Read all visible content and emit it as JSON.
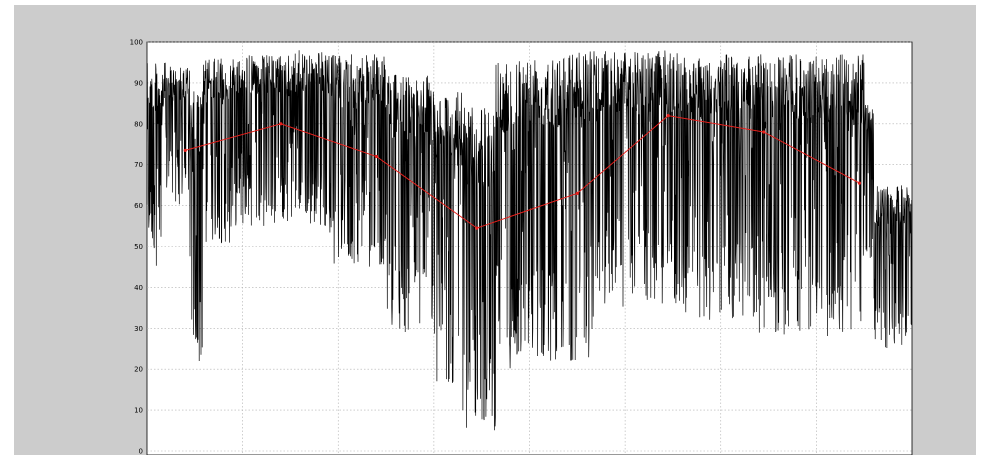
{
  "window": {
    "background": "#cccccc"
  },
  "chart_data": {
    "type": "line",
    "title": "",
    "xlabel": "",
    "ylabel": "",
    "ylim": [
      0,
      100
    ],
    "xlim": [
      0,
      800
    ],
    "grid": true,
    "y_ticks": [
      "0",
      "10",
      "20",
      "30",
      "40",
      "50",
      "60",
      "70",
      "80",
      "90",
      "100"
    ],
    "series": [
      {
        "style": "thin black line, dense high-frequency signal",
        "color": "#000000",
        "segments": [
          {
            "x_start": 0,
            "x_end": 20,
            "lo": 45,
            "hi": 95
          },
          {
            "x_start": 20,
            "x_end": 45,
            "lo": 60,
            "hi": 94
          },
          {
            "x_start": 45,
            "x_end": 58,
            "lo": 18,
            "hi": 88
          },
          {
            "x_start": 58,
            "x_end": 90,
            "lo": 50,
            "hi": 96
          },
          {
            "x_start": 90,
            "x_end": 150,
            "lo": 55,
            "hi": 97
          },
          {
            "x_start": 150,
            "x_end": 190,
            "lo": 55,
            "hi": 98
          },
          {
            "x_start": 190,
            "x_end": 250,
            "lo": 45,
            "hi": 97
          },
          {
            "x_start": 250,
            "x_end": 300,
            "lo": 28,
            "hi": 92
          },
          {
            "x_start": 300,
            "x_end": 330,
            "lo": 15,
            "hi": 88
          },
          {
            "x_start": 330,
            "x_end": 365,
            "lo": 5,
            "hi": 84
          },
          {
            "x_start": 365,
            "x_end": 400,
            "lo": 20,
            "hi": 97
          },
          {
            "x_start": 400,
            "x_end": 470,
            "lo": 22,
            "hi": 98
          },
          {
            "x_start": 470,
            "x_end": 560,
            "lo": 35,
            "hi": 98
          },
          {
            "x_start": 560,
            "x_end": 640,
            "lo": 32,
            "hi": 97
          },
          {
            "x_start": 640,
            "x_end": 700,
            "lo": 28,
            "hi": 97
          },
          {
            "x_start": 700,
            "x_end": 750,
            "lo": 28,
            "hi": 97
          },
          {
            "x_start": 750,
            "x_end": 760,
            "lo": 45,
            "hi": 85
          },
          {
            "x_start": 760,
            "x_end": 800,
            "lo": 25,
            "hi": 65
          }
        ]
      },
      {
        "style": "red line with point markers",
        "color": "#e8201c",
        "x": [
          40,
          140,
          240,
          345,
          450,
          545,
          645,
          745
        ],
        "y": [
          73.5,
          80,
          72,
          54.5,
          63,
          82,
          78,
          65.5
        ]
      }
    ]
  }
}
